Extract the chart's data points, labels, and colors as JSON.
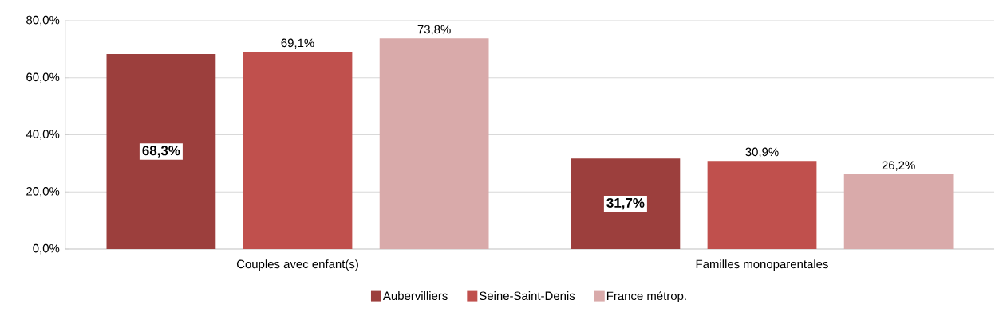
{
  "chart_data": {
    "type": "bar",
    "categories": [
      "Couples avec enfant(s)",
      "Familles monoparentales"
    ],
    "series": [
      {
        "name": "Aubervilliers",
        "color": "#9c3f3d",
        "values": [
          68.3,
          31.7
        ],
        "value_labels": [
          "68,3%",
          "31,7%"
        ]
      },
      {
        "name": "Seine-Saint-Denis",
        "color": "#c0504d",
        "values": [
          69.1,
          30.9
        ],
        "value_labels": [
          "69,1%",
          "30,9%"
        ]
      },
      {
        "name": "France métrop.",
        "color": "#d9aaaa",
        "values": [
          73.8,
          26.2
        ],
        "value_labels": [
          "73,8%",
          "26,2%"
        ]
      }
    ],
    "ylim": [
      0,
      80
    ],
    "yticks": [
      {
        "value": 0,
        "label": "0,0%"
      },
      {
        "value": 20,
        "label": "20,0%"
      },
      {
        "value": 40,
        "label": "40,0%"
      },
      {
        "value": 60,
        "label": "60,0%"
      },
      {
        "value": 80,
        "label": "80,0%"
      }
    ],
    "grid": "y",
    "legend": "bottom"
  }
}
